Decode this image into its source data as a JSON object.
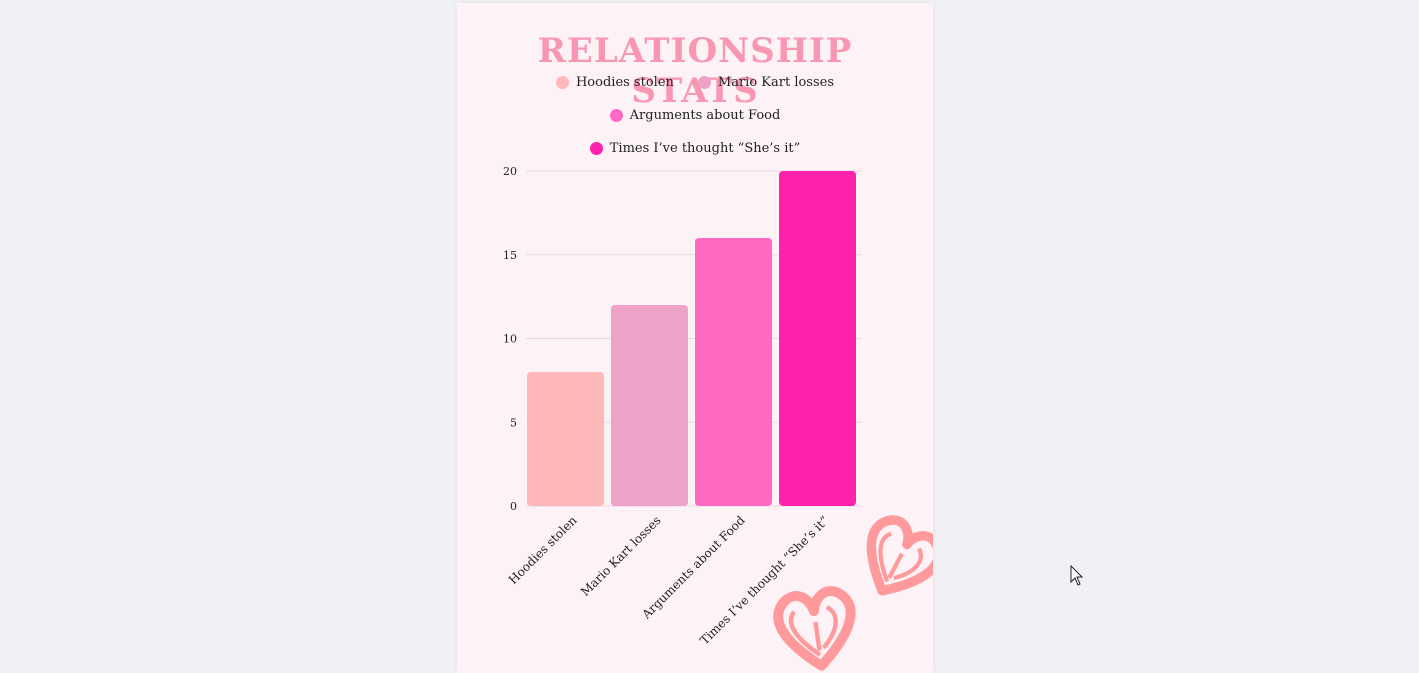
{
  "chart_data": {
    "type": "bar",
    "title": "RELATIONSHIP STATS",
    "categories": [
      "Hoodies stolen",
      "Mario Kart losses",
      "Arguments about Food",
      "Times I’ve thought “She’s it”"
    ],
    "values": [
      8,
      12,
      16,
      20
    ],
    "colors": [
      "#ffb8ba",
      "#eda2c8",
      "#ff69c2",
      "#ff22aa"
    ],
    "ylim": [
      0,
      20
    ],
    "yticks": [
      0,
      5,
      10,
      15,
      20
    ],
    "grid": true,
    "legend_placement": "top"
  },
  "decoration": {
    "heart_color": "#ff9a9c",
    "cursor_icon": "mouse-pointer-icon"
  }
}
